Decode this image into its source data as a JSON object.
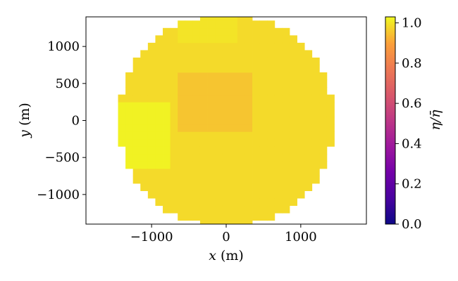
{
  "chart_data": {
    "type": "heatmap",
    "title": "",
    "xlabel": {
      "var": "x",
      "unit": " (m)"
    },
    "ylabel": {
      "var": "y",
      "unit": " (m)"
    },
    "xlim": [
      -1880,
      1880
    ],
    "ylim": [
      -1400,
      1400
    ],
    "x_ticks": [
      {
        "value": -1000,
        "label": "−1000"
      },
      {
        "value": 0,
        "label": "0"
      },
      {
        "value": 1000,
        "label": "1000"
      }
    ],
    "y_ticks": [
      {
        "value": 1000,
        "label": "1000"
      },
      {
        "value": 500,
        "label": "500"
      },
      {
        "value": 0,
        "label": "0"
      },
      {
        "value": -500,
        "label": "−500"
      },
      {
        "value": -1000,
        "label": "−1000"
      }
    ],
    "grid": false,
    "cell_size": 100,
    "field_radius": 1450,
    "base_value": 0.985,
    "colorbar": {
      "colormap": "plasma",
      "label": "η/η̄",
      "range": [
        0.0,
        1.03
      ],
      "ticks": [
        {
          "value": 0.0,
          "label": "0.0"
        },
        {
          "value": 0.2,
          "label": "0.2"
        },
        {
          "value": 0.4,
          "label": "0.4"
        },
        {
          "value": 0.6,
          "label": "0.6"
        },
        {
          "value": 0.8,
          "label": "0.8"
        },
        {
          "value": 1.0,
          "label": "1.0"
        }
      ]
    },
    "regions": [
      {
        "x_range": [
          -600,
          300
        ],
        "y_range": [
          -100,
          600
        ],
        "value": 0.955,
        "note": "slightly lower efficiency band in upper-left-centre"
      },
      {
        "x_range": [
          -1450,
          -800
        ],
        "y_range": [
          -650,
          250
        ],
        "value": 1.02,
        "note": "brighter region at left edge"
      },
      {
        "x_range": [
          -600,
          100
        ],
        "y_range": [
          1100,
          1400
        ],
        "value": 1.0
      }
    ]
  }
}
